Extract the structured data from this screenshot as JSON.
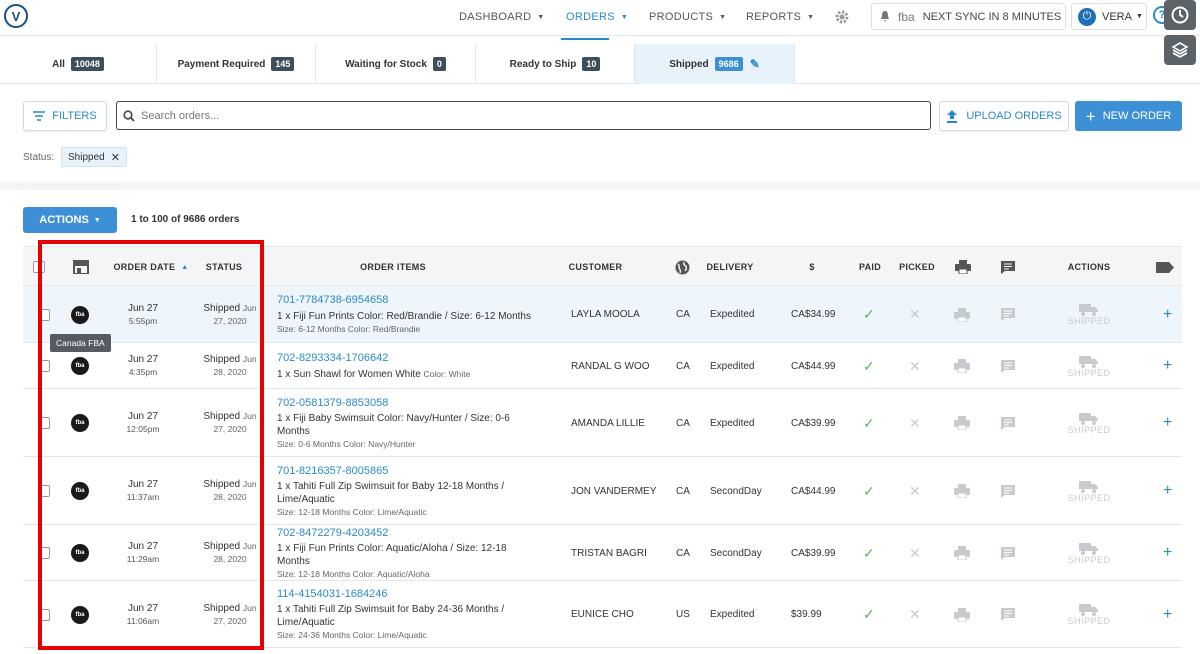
{
  "nav": {
    "logo_text": "V",
    "items": [
      {
        "label": "DASHBOARD",
        "active": false
      },
      {
        "label": "ORDERS",
        "active": true
      },
      {
        "label": "PRODUCTS",
        "active": false
      },
      {
        "label": "REPORTS",
        "active": false
      }
    ],
    "sync_fba": "fba",
    "sync_text": "NEXT SYNC IN 8 MINUTES",
    "user": "VERA",
    "help": "?"
  },
  "tabs": [
    {
      "label": "All",
      "count": "10048"
    },
    {
      "label": "Payment Required",
      "count": "145"
    },
    {
      "label": "Waiting for Stock",
      "count": "0"
    },
    {
      "label": "Ready to Ship",
      "count": "10"
    },
    {
      "label": "Shipped",
      "count": "9686",
      "active": true
    }
  ],
  "toolbar": {
    "filters_label": "FILTERS",
    "search_placeholder": "Search orders...",
    "upload_label": "UPLOAD ORDERS",
    "new_order_label": "NEW ORDER",
    "status_label": "Status:",
    "status_chip": "Shipped"
  },
  "list": {
    "actions_label": "ACTIONS",
    "range_text": "1 to 100 of 9686 orders"
  },
  "columns": {
    "order_date": "ORDER DATE",
    "status": "STATUS",
    "order_items": "ORDER ITEMS",
    "customer": "CUSTOMER",
    "delivery": "DELIVERY",
    "amount": "$",
    "paid": "PAID",
    "picked": "PICKED",
    "actions": "ACTIONS"
  },
  "tooltip": "Canada FBA",
  "fba_badge": "fba",
  "shipped_label": "SHIPPED",
  "rows": [
    {
      "date": "Jun 27",
      "time": "5:55pm",
      "status": "Shipped",
      "status_date1": "Jun",
      "status_date2": "27, 2020",
      "order_no": "701-7784738-6954658",
      "desc": "1 x Fiji Fun Prints Color: Red/Brandie / Size: 6-12 Months",
      "opt": "",
      "meta": "Size: 6-12 Months   Color: Red/Brandie",
      "customer": "LAYLA MOOLA",
      "country": "CA",
      "delivery": "Expedited",
      "amount": "CA$34.99"
    },
    {
      "date": "Jun 27",
      "time": "4:35pm",
      "status": "Shipped",
      "status_date1": "Jun",
      "status_date2": "28, 2020",
      "order_no": "702-8293334-1706642",
      "desc": "1 x Sun Shawl for Women White",
      "opt": "Color: White",
      "meta": "",
      "customer": "RANDAL G WOO",
      "country": "CA",
      "delivery": "Expedited",
      "amount": "CA$44.99"
    },
    {
      "date": "Jun 27",
      "time": "12:05pm",
      "status": "Shipped",
      "status_date1": "Jun",
      "status_date2": "27, 2020",
      "order_no": "702-0581379-8853058",
      "desc": "1 x Fiji Baby Swimsuit Color: Navy/Hunter / Size: 0-6 Months",
      "opt": "",
      "meta": "Size: 0-6 Months   Color: Navy/Hunter",
      "customer": "AMANDA LILLIE",
      "country": "CA",
      "delivery": "Expedited",
      "amount": "CA$39.99"
    },
    {
      "date": "Jun 27",
      "time": "11:37am",
      "status": "Shipped",
      "status_date1": "Jun",
      "status_date2": "28, 2020",
      "order_no": "701-8216357-8005865",
      "desc": "1 x Tahiti Full Zip Swimsuit for Baby 12-18 Months / Lime/Aquatic",
      "opt": "",
      "meta": "Size: 12-18 Months   Color: Lime/Aquatic",
      "customer": "JON VANDERMEY",
      "country": "CA",
      "delivery": "SecondDay",
      "amount": "CA$44.99"
    },
    {
      "date": "Jun 27",
      "time": "11:29am",
      "status": "Shipped",
      "status_date1": "Jun",
      "status_date2": "28, 2020",
      "order_no": "702-8472279-4203452",
      "desc": "1 x Fiji Fun Prints Color: Aquatic/Aloha / Size: 12-18 Months",
      "opt": "",
      "meta": "Size: 12-18 Months   Color: Aquatic/Aloha",
      "customer": "TRISTAN BAGRI",
      "country": "CA",
      "delivery": "SecondDay",
      "amount": "CA$39.99"
    },
    {
      "date": "Jun 27",
      "time": "11:06am",
      "status": "Shipped",
      "status_date1": "Jun",
      "status_date2": "27, 2020",
      "order_no": "114-4154031-1684246",
      "desc": "1 x Tahiti Full Zip Swimsuit for Baby 24-36 Months / Lime/Aquatic",
      "opt": "",
      "meta": "Size: 24-36 Months   Color: Lime/Aquatic",
      "customer": "EUNICE CHO",
      "country": "US",
      "delivery": "Expedited",
      "amount": "$39.99"
    }
  ]
}
